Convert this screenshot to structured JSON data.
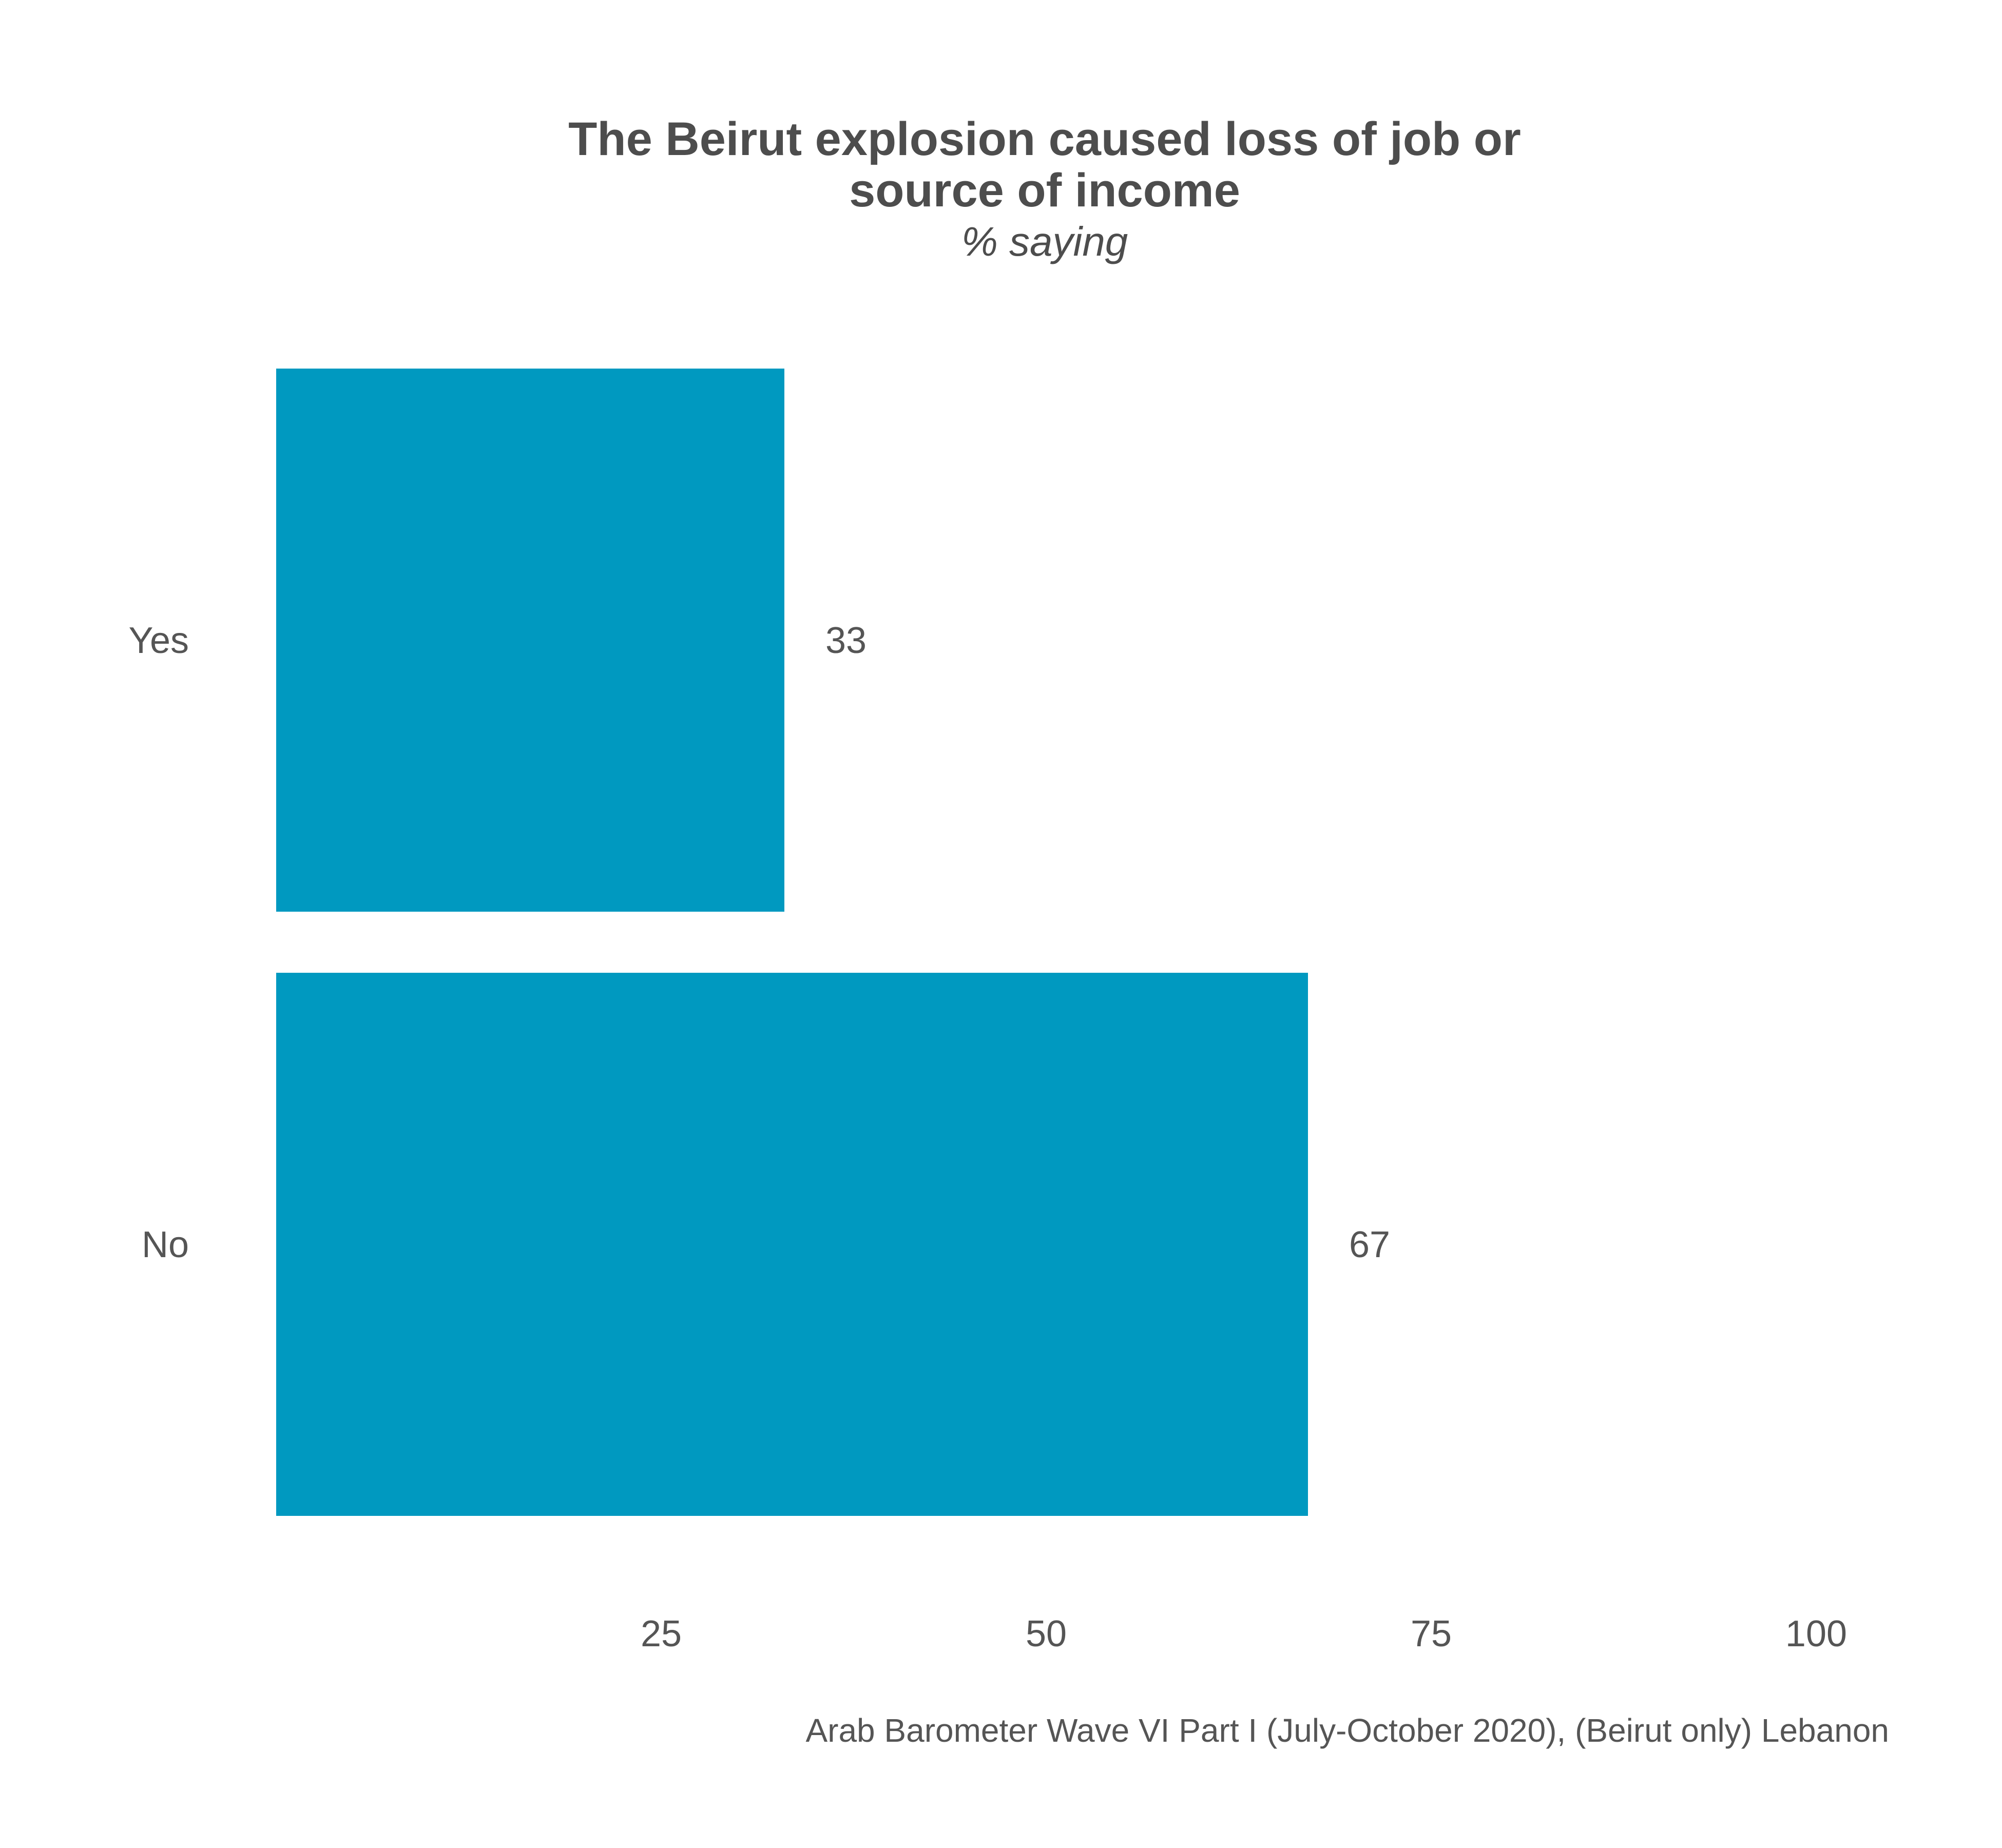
{
  "chart_data": {
    "type": "bar",
    "orientation": "horizontal",
    "title": [
      "The Beirut explosion caused loss of job or",
      "source of income"
    ],
    "subtitle": "% saying",
    "categories": [
      "Yes",
      "No"
    ],
    "values": [
      33,
      67
    ],
    "xlim": [
      0,
      100
    ],
    "xticks": [
      25,
      50,
      75,
      100
    ],
    "grid": false,
    "caption": "Arab Barometer Wave VI Part I (July-October 2020), (Beirut only) Lebanon",
    "bar_color": "#0099c0"
  }
}
